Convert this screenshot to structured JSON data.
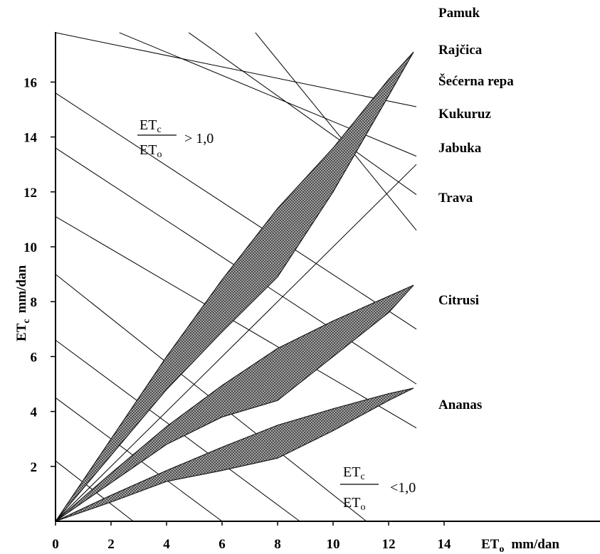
{
  "chart_data": {
    "type": "area",
    "xlabel": {
      "main": "ET",
      "sub": "o",
      "unit": "mm/dan"
    },
    "ylabel": {
      "main": "ET",
      "sub": "c",
      "unit": "mm/dan"
    },
    "xlim": [
      0,
      18.5
    ],
    "ylim": [
      0,
      17.8
    ],
    "x_ticks": [
      "0",
      "2",
      "4",
      "6",
      "8",
      "10",
      "12",
      "14"
    ],
    "y_ticks": [
      "2",
      "4",
      "6",
      "8",
      "10",
      "12",
      "14",
      "16"
    ],
    "crops": [
      "Pamuk",
      "Rajčica",
      "Šećerna repa",
      "Kukuruz",
      "Jabuka",
      "Trava",
      "Citrusi",
      "Ananas"
    ],
    "ratio_labels": {
      "above": {
        "num": "ET",
        "num_sub": "c",
        "den": "ET",
        "den_sub": "o",
        "relation": "> 1,0"
      },
      "below": {
        "num": "ET",
        "num_sub": "c",
        "den": "ET",
        "den_sub": "o",
        "relation": "<1,0"
      }
    },
    "reference_line": {
      "x": [
        0,
        13
      ],
      "y": [
        0,
        13
      ]
    },
    "series": [
      {
        "upper": {
          "x": [
            0,
            2,
            4,
            6,
            8,
            10,
            12,
            12.9
          ],
          "y": [
            0,
            3.0,
            6.0,
            8.8,
            11.4,
            13.6,
            16.1,
            17.1
          ]
        },
        "lower": {
          "x": [
            0,
            2,
            4,
            6,
            8,
            10,
            12,
            12.9
          ],
          "y": [
            0,
            2.4,
            4.8,
            6.9,
            8.9,
            12.0,
            15.5,
            17.1
          ]
        }
      },
      {
        "upper": {
          "x": [
            0,
            2,
            4,
            6,
            8,
            10,
            12,
            12.9
          ],
          "y": [
            0,
            1.75,
            3.45,
            4.95,
            6.3,
            7.3,
            8.2,
            8.6
          ]
        },
        "lower": {
          "x": [
            0,
            2,
            4,
            6,
            8,
            10,
            12,
            12.9
          ],
          "y": [
            0,
            1.4,
            2.8,
            3.8,
            4.4,
            6.0,
            7.6,
            8.6
          ]
        }
      },
      {
        "upper": {
          "x": [
            0,
            2,
            4,
            6,
            8,
            10,
            12,
            12.9
          ],
          "y": [
            0,
            0.95,
            1.85,
            2.7,
            3.5,
            4.1,
            4.65,
            4.85
          ]
        },
        "lower": {
          "x": [
            0,
            2,
            4,
            6,
            8,
            10,
            12,
            12.9
          ],
          "y": [
            0,
            0.7,
            1.45,
            1.85,
            2.3,
            3.3,
            4.4,
            4.85
          ]
        }
      }
    ],
    "diagonal_guides": [
      {
        "x": [
          0,
          13
        ],
        "y": [
          17.8,
          15.1
        ]
      },
      {
        "x": [
          2.3,
          13
        ],
        "y": [
          17.8,
          13.3
        ]
      },
      {
        "x": [
          4.8,
          13
        ],
        "y": [
          17.8,
          11.9
        ]
      },
      {
        "x": [
          7.2,
          13
        ],
        "y": [
          17.8,
          10.6
        ]
      },
      {
        "x": [
          0,
          13
        ],
        "y": [
          15.6,
          7.0
        ]
      },
      {
        "x": [
          0,
          13
        ],
        "y": [
          13.6,
          5.0
        ]
      },
      {
        "x": [
          0,
          13
        ],
        "y": [
          11.1,
          3.4
        ]
      },
      {
        "x": [
          0,
          11.2
        ],
        "y": [
          9.0,
          0
        ]
      },
      {
        "x": [
          0,
          8.8
        ],
        "y": [
          6.6,
          0
        ]
      },
      {
        "x": [
          0,
          6.0
        ],
        "y": [
          4.5,
          0
        ]
      },
      {
        "x": [
          0,
          2.8
        ],
        "y": [
          2.2,
          0
        ]
      }
    ]
  }
}
